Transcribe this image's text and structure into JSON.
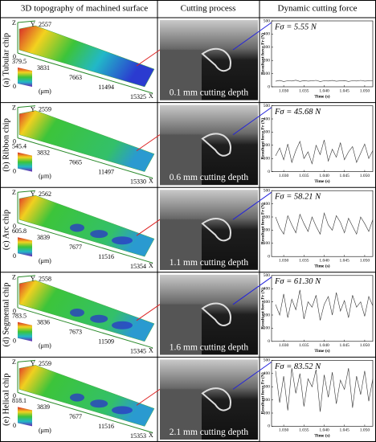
{
  "header": {
    "col1": "3D topography of machined surface",
    "col2": "Cutting process",
    "col3": "Dynamic cutting force"
  },
  "force_axes": {
    "y_label": "Resultant force Fr (N)",
    "x_label": "Time (s)",
    "ylim": [
      0,
      500
    ],
    "yticks": [
      0,
      100,
      200,
      300,
      400,
      500
    ],
    "xlim": [
      1.027,
      1.052
    ],
    "xticks": [
      {
        "value": 1.03,
        "label": "1.030"
      },
      {
        "value": 1.035,
        "label": "1.035"
      },
      {
        "value": 1.04,
        "label": "1.040"
      },
      {
        "value": 1.045,
        "label": "1.045"
      },
      {
        "value": 1.05,
        "label": "1.050"
      }
    ]
  },
  "rows": [
    {
      "label": "(a) Tubular chip",
      "z": "Z",
      "y": "Y",
      "x": "X",
      "y_max": "2557",
      "x_ticks": [
        "0",
        "3831",
        "7663",
        "11494",
        "15325"
      ],
      "z_max": "379.5",
      "z_min": "0",
      "unit": "(μm)",
      "depth": "0.1 mm cutting depth",
      "force": {
        "type": "line",
        "label": "Fσ = 5.55 N",
        "color": "#333333",
        "x": [
          1.028,
          1.029,
          1.03,
          1.031,
          1.032,
          1.033,
          1.034,
          1.035,
          1.036,
          1.037,
          1.038,
          1.039,
          1.04,
          1.041,
          1.042,
          1.043,
          1.044,
          1.045,
          1.046,
          1.047,
          1.048,
          1.049,
          1.05,
          1.051,
          1.052
        ],
        "values": [
          42,
          48,
          40,
          46,
          44,
          50,
          41,
          47,
          43,
          45,
          49,
          40,
          46,
          44,
          48,
          42,
          45,
          47,
          41,
          46,
          44,
          49,
          43,
          45,
          46
        ]
      }
    },
    {
      "label": "(b) Ribbon chip",
      "z": "Z",
      "y": "Y",
      "x": "X",
      "y_max": "2559",
      "x_ticks": [
        "0",
        "3832",
        "7665",
        "11497",
        "15330"
      ],
      "z_max": "545.4",
      "z_min": "0",
      "unit": "(μm)",
      "depth": "0.6 mm cutting depth",
      "force": {
        "type": "line",
        "label": "Fσ = 45.68 N",
        "color": "#333333",
        "x": [
          1.028,
          1.029,
          1.03,
          1.031,
          1.032,
          1.033,
          1.034,
          1.035,
          1.036,
          1.037,
          1.038,
          1.039,
          1.04,
          1.041,
          1.042,
          1.043,
          1.044,
          1.045,
          1.046,
          1.047,
          1.048,
          1.049,
          1.05,
          1.051,
          1.052
        ],
        "values": [
          120,
          180,
          90,
          210,
          70,
          160,
          230,
          100,
          150,
          60,
          200,
          130,
          240,
          80,
          170,
          110,
          220,
          90,
          150,
          190,
          70,
          140,
          210,
          100,
          160
        ]
      }
    },
    {
      "label": "(c) Arc chip",
      "z": "Z",
      "y": "Y",
      "x": "X",
      "y_max": "2562",
      "x_ticks": [
        "0",
        "3839",
        "7677",
        "11516",
        "15354"
      ],
      "z_max": "605.8",
      "z_min": "0",
      "unit": "(μm)",
      "depth": "1.1 mm cutting depth",
      "force": {
        "type": "line",
        "label": "Fσ = 58.21 N",
        "color": "#333333",
        "x": [
          1.028,
          1.029,
          1.03,
          1.031,
          1.032,
          1.033,
          1.034,
          1.035,
          1.036,
          1.037,
          1.038,
          1.039,
          1.04,
          1.041,
          1.042,
          1.043,
          1.044,
          1.045,
          1.046,
          1.047,
          1.048,
          1.049,
          1.05,
          1.051,
          1.052
        ],
        "values": [
          300,
          220,
          170,
          310,
          240,
          180,
          320,
          250,
          190,
          300,
          230,
          170,
          330,
          240,
          200,
          310,
          260,
          180,
          290,
          230,
          170,
          300,
          250,
          190,
          280
        ]
      }
    },
    {
      "label": "(d) Segmental chip",
      "z": "Z",
      "y": "Y",
      "x": "X",
      "y_max": "2558",
      "x_ticks": [
        "0",
        "3836",
        "7673",
        "11509",
        "15345"
      ],
      "z_max": "783.5",
      "z_min": "0",
      "unit": "(μm)",
      "depth": "1.6 mm cutting depth",
      "force": {
        "type": "line",
        "label": "Fσ = 61.30 N",
        "color": "#333333",
        "x": [
          1.028,
          1.029,
          1.03,
          1.031,
          1.032,
          1.033,
          1.034,
          1.035,
          1.036,
          1.037,
          1.038,
          1.039,
          1.04,
          1.041,
          1.042,
          1.043,
          1.044,
          1.045,
          1.046,
          1.047,
          1.048,
          1.049,
          1.05,
          1.051,
          1.052
        ],
        "values": [
          280,
          200,
          360,
          180,
          320,
          240,
          390,
          170,
          300,
          260,
          350,
          160,
          280,
          340,
          200,
          370,
          230,
          310,
          180,
          350,
          260,
          300,
          190,
          340,
          270
        ]
      }
    },
    {
      "label": "(e) Helical chip",
      "z": "Z",
      "y": "Y",
      "x": "X",
      "y_max": "2559",
      "x_ticks": [
        "0",
        "3839",
        "7677",
        "11516",
        "15353"
      ],
      "z_max": "818.1",
      "z_min": "0",
      "unit": "(μm)",
      "depth": "2.1 mm cutting depth",
      "force": {
        "type": "line",
        "label": "Fσ = 83.52 N",
        "color": "#333333",
        "x": [
          1.028,
          1.029,
          1.03,
          1.031,
          1.032,
          1.033,
          1.034,
          1.035,
          1.036,
          1.037,
          1.038,
          1.039,
          1.04,
          1.041,
          1.042,
          1.043,
          1.044,
          1.045,
          1.046,
          1.047,
          1.048,
          1.049,
          1.05,
          1.051,
          1.052
        ],
        "values": [
          420,
          180,
          380,
          120,
          440,
          250,
          400,
          150,
          360,
          300,
          430,
          110,
          390,
          220,
          410,
          170,
          350,
          280,
          440,
          140,
          380,
          240,
          420,
          190,
          360
        ]
      }
    }
  ]
}
